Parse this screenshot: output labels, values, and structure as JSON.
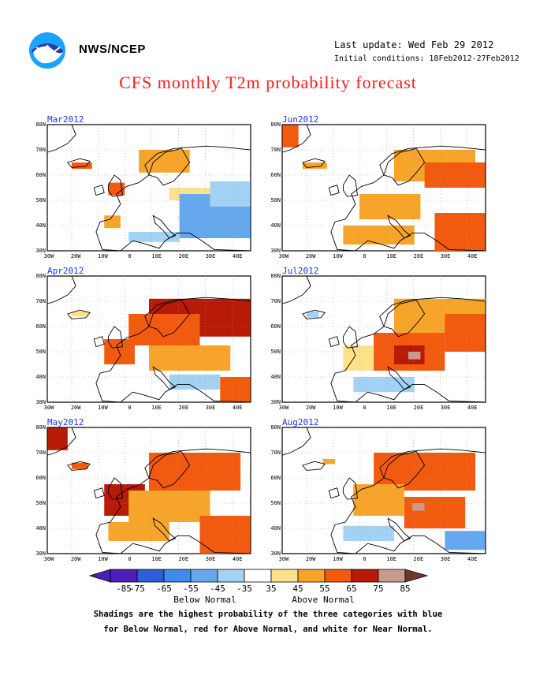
{
  "header": {
    "org": "NWS/NCEP",
    "last_update": "Last update: Wed Feb 29 2012",
    "initial_conditions": "Initial conditions: 18Feb2012-27Feb2012",
    "title": "CFS monthly T2m probability forecast"
  },
  "axes": {
    "lat_labels": [
      "80N",
      "70N",
      "60N",
      "50N",
      "40N",
      "30N"
    ],
    "lon_labels": [
      "30W",
      "20W",
      "10W",
      "0",
      "10E",
      "20E",
      "30E",
      "40E"
    ]
  },
  "panels": [
    {
      "title": "Mar2012"
    },
    {
      "title": "Jun2012"
    },
    {
      "title": "Apr2012"
    },
    {
      "title": "Jul2012"
    },
    {
      "title": "May2012"
    },
    {
      "title": "Aug2012"
    }
  ],
  "colorbar": {
    "labels": [
      "-85",
      "-75",
      "-65",
      "-55",
      "-45",
      "-35",
      "35",
      "45",
      "55",
      "65",
      "75",
      "85"
    ],
    "colors": [
      "#4a1fb5",
      "#2f5fd6",
      "#3d8ce8",
      "#66a8ee",
      "#a3d3f4",
      "#ffffff",
      "#fde28a",
      "#f7a52a",
      "#f25a0f",
      "#b71a06",
      "#c79a8d",
      "#6e3a2a"
    ],
    "below_label": "Below Normal",
    "above_label": "Above Normal"
  },
  "footnote": {
    "line1": "Shadings are the highest probability of the three categories with blue",
    "line2": "for Below Normal, red for Above Normal, and white for Near Normal."
  }
}
